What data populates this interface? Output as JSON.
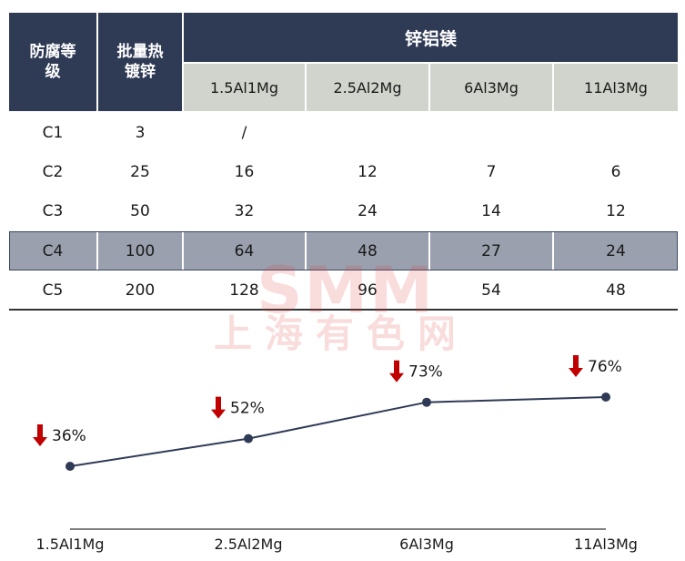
{
  "table": {
    "header": {
      "col1": "防腐等级",
      "col2": "批量热镀锌",
      "group": "锌铝镁",
      "alloys": [
        "1.5Al1Mg",
        "2.5Al2Mg",
        "6Al3Mg",
        "11Al3Mg"
      ]
    },
    "rows": [
      {
        "grade": "C1",
        "batch": "3",
        "v1": "/",
        "v2": "",
        "v3": "",
        "v4": ""
      },
      {
        "grade": "C2",
        "batch": "25",
        "v1": "16",
        "v2": "12",
        "v3": "7",
        "v4": "6"
      },
      {
        "grade": "C3",
        "batch": "50",
        "v1": "32",
        "v2": "24",
        "v3": "14",
        "v4": "12"
      },
      {
        "grade": "C4",
        "batch": "100",
        "v1": "64",
        "v2": "48",
        "v3": "27",
        "v4": "24"
      },
      {
        "grade": "C5",
        "batch": "200",
        "v1": "128",
        "v2": "96",
        "v3": "54",
        "v4": "48"
      }
    ],
    "highlight_row": "C4"
  },
  "watermark": {
    "line1": "SMM",
    "line2": "上海有色网"
  },
  "chart_data": {
    "type": "line",
    "categories": [
      "1.5Al1Mg",
      "2.5Al2Mg",
      "6Al3Mg",
      "11Al3Mg"
    ],
    "values": [
      36,
      52,
      73,
      76
    ],
    "labels": [
      "36%",
      "52%",
      "73%",
      "76%"
    ],
    "line_color": "#2f3a55",
    "arrow_color": "#c00000",
    "grid": false
  }
}
